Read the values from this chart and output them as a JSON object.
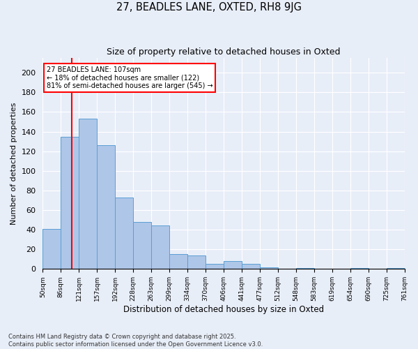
{
  "title1": "27, BEADLES LANE, OXTED, RH8 9JG",
  "title2": "Size of property relative to detached houses in Oxted",
  "xlabel": "Distribution of detached houses by size in Oxted",
  "ylabel": "Number of detached properties",
  "bar_heights": [
    41,
    135,
    153,
    126,
    73,
    48,
    44,
    15,
    14,
    5,
    8,
    5,
    2,
    0,
    1,
    0,
    0,
    1,
    0,
    1
  ],
  "tick_labels": [
    "50sqm",
    "86sqm",
    "121sqm",
    "157sqm",
    "192sqm",
    "228sqm",
    "263sqm",
    "299sqm",
    "334sqm",
    "370sqm",
    "406sqm",
    "441sqm",
    "477sqm",
    "512sqm",
    "548sqm",
    "583sqm",
    "619sqm",
    "654sqm",
    "690sqm",
    "725sqm",
    "761sqm"
  ],
  "bar_color": "#aec6e8",
  "bar_edgecolor": "#5a9fd4",
  "vline_x_index": 0.58,
  "vline_color": "red",
  "annotation_text": "27 BEADLES LANE: 107sqm\n← 18% of detached houses are smaller (122)\n81% of semi-detached houses are larger (545) →",
  "annotation_box_color": "white",
  "annotation_box_edgecolor": "red",
  "background_color": "#e8eef8",
  "yticks": [
    0,
    20,
    40,
    60,
    80,
    100,
    120,
    140,
    160,
    180,
    200
  ],
  "ylim": [
    0,
    215
  ],
  "footer": "Contains HM Land Registry data © Crown copyright and database right 2025.\nContains public sector information licensed under the Open Government Licence v3.0.",
  "grid_color": "#ffffff",
  "n_bars": 20
}
